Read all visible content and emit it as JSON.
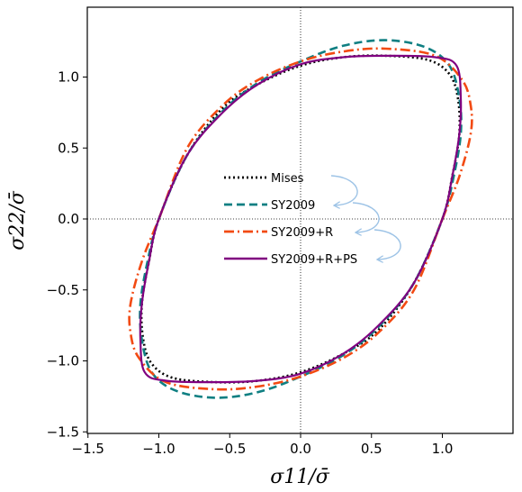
{
  "chart_data": {
    "type": "line",
    "title": "",
    "xlabel": "σ11/σ̄",
    "ylabel": "σ22/σ̄",
    "xlim": [
      -1.5,
      1.5
    ],
    "ylim": [
      -1.5,
      1.5
    ],
    "x_ticks": [
      "−1.5",
      "−1.0",
      "−0.5",
      "0.0",
      "0.5",
      "1.0"
    ],
    "y_ticks": [
      "−1.5",
      "−1.0",
      "−0.5",
      "0.0",
      "0.5",
      "1.0"
    ],
    "grid": false,
    "reference_lines": "dotted lines at x = 0 and y = 0",
    "legend_position": "center",
    "legend_arrows": "curved light-blue arrows linking successive legend entries",
    "series": [
      {
        "name": "Mises",
        "color": "#000000",
        "dash": "dotted",
        "points": [
          [
            1.0,
            0.0
          ],
          [
            1.07,
            0.3
          ],
          [
            1.12,
            0.6
          ],
          [
            1.11,
            0.85
          ],
          [
            1.05,
            1.02
          ],
          [
            0.9,
            1.12
          ],
          [
            0.6,
            1.15
          ],
          [
            0.3,
            1.14
          ],
          [
            0.0,
            1.08
          ],
          [
            -0.3,
            0.95
          ],
          [
            -0.55,
            0.78
          ],
          [
            -0.8,
            0.45
          ],
          [
            -1.0,
            0.0
          ],
          [
            -1.07,
            -0.3
          ],
          [
            -1.12,
            -0.6
          ],
          [
            -1.11,
            -0.85
          ],
          [
            -1.05,
            -1.02
          ],
          [
            -0.9,
            -1.12
          ],
          [
            -0.6,
            -1.15
          ],
          [
            -0.3,
            -1.14
          ],
          [
            0.0,
            -1.08
          ],
          [
            0.3,
            -0.95
          ],
          [
            0.55,
            -0.78
          ],
          [
            0.8,
            -0.45
          ],
          [
            1.0,
            0.0
          ]
        ]
      },
      {
        "name": "SY2009",
        "color": "#0f7f82",
        "dash": "dashed",
        "points": [
          [
            1.0,
            0.0
          ],
          [
            1.08,
            0.3
          ],
          [
            1.13,
            0.6
          ],
          [
            1.12,
            0.85
          ],
          [
            1.05,
            1.08
          ],
          [
            0.88,
            1.21
          ],
          [
            0.6,
            1.26
          ],
          [
            0.3,
            1.22
          ],
          [
            0.0,
            1.11
          ],
          [
            -0.3,
            0.96
          ],
          [
            -0.55,
            0.76
          ],
          [
            -0.8,
            0.45
          ],
          [
            -1.0,
            0.0
          ],
          [
            -1.08,
            -0.3
          ],
          [
            -1.13,
            -0.6
          ],
          [
            -1.12,
            -0.85
          ],
          [
            -1.05,
            -1.08
          ],
          [
            -0.88,
            -1.21
          ],
          [
            -0.6,
            -1.26
          ],
          [
            -0.3,
            -1.22
          ],
          [
            0.0,
            -1.11
          ],
          [
            0.3,
            -0.96
          ],
          [
            0.55,
            -0.76
          ],
          [
            0.8,
            -0.45
          ],
          [
            1.0,
            0.0
          ]
        ]
      },
      {
        "name": "SY2009+R",
        "color": "#f24a13",
        "dash": "dashdot",
        "points": [
          [
            1.0,
            0.0
          ],
          [
            1.12,
            0.3
          ],
          [
            1.2,
            0.6
          ],
          [
            1.2,
            0.8
          ],
          [
            1.14,
            0.98
          ],
          [
            0.95,
            1.15
          ],
          [
            0.6,
            1.2
          ],
          [
            0.3,
            1.18
          ],
          [
            0.0,
            1.11
          ],
          [
            -0.3,
            0.98
          ],
          [
            -0.55,
            0.8
          ],
          [
            -0.8,
            0.5
          ],
          [
            -1.0,
            0.0
          ],
          [
            -1.12,
            -0.3
          ],
          [
            -1.2,
            -0.6
          ],
          [
            -1.2,
            -0.8
          ],
          [
            -1.14,
            -0.98
          ],
          [
            -0.95,
            -1.15
          ],
          [
            -0.6,
            -1.2
          ],
          [
            -0.3,
            -1.18
          ],
          [
            0.0,
            -1.11
          ],
          [
            0.3,
            -0.98
          ],
          [
            0.55,
            -0.8
          ],
          [
            0.8,
            -0.5
          ],
          [
            1.0,
            0.0
          ]
        ]
      },
      {
        "name": "SY2009+R+PS",
        "color": "#800080",
        "dash": "solid",
        "points": [
          [
            1.0,
            0.0
          ],
          [
            1.07,
            0.3
          ],
          [
            1.12,
            0.6
          ],
          [
            1.13,
            0.85
          ],
          [
            1.1,
            1.08
          ],
          [
            0.95,
            1.14
          ],
          [
            0.6,
            1.15
          ],
          [
            0.3,
            1.14
          ],
          [
            0.0,
            1.09
          ],
          [
            -0.3,
            0.95
          ],
          [
            -0.55,
            0.75
          ],
          [
            -0.8,
            0.45
          ],
          [
            -1.0,
            0.0
          ],
          [
            -1.07,
            -0.3
          ],
          [
            -1.12,
            -0.6
          ],
          [
            -1.13,
            -0.85
          ],
          [
            -1.1,
            -1.08
          ],
          [
            -0.95,
            -1.14
          ],
          [
            -0.6,
            -1.15
          ],
          [
            -0.3,
            -1.14
          ],
          [
            0.0,
            -1.09
          ],
          [
            0.3,
            -0.95
          ],
          [
            0.55,
            -0.75
          ],
          [
            0.8,
            -0.45
          ],
          [
            1.0,
            0.0
          ]
        ]
      }
    ]
  }
}
